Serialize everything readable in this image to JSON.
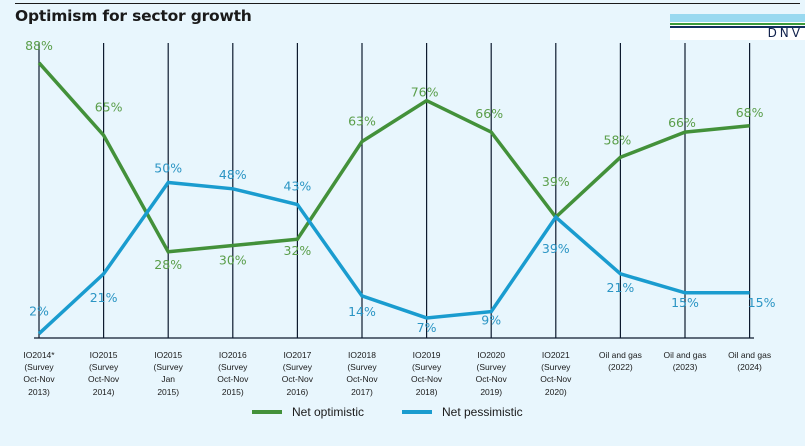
{
  "header": {
    "title": "Optimism for sector growth",
    "logo_text": "DNV"
  },
  "chart_data": {
    "type": "line",
    "title": "Optimism for sector growth",
    "xlabel": "",
    "ylabel": "",
    "ylim": [
      0,
      100
    ],
    "grid": "vertical",
    "legend_position": "bottom",
    "categories": [
      [
        "IO2014*",
        "(Survey",
        "Oct-Nov",
        "2013)"
      ],
      [
        "IO2015",
        "(Survey",
        "Oct-Nov",
        "2014)"
      ],
      [
        "IO2015",
        "(Survey",
        "Jan",
        "2015)"
      ],
      [
        "IO2016",
        "(Survey",
        "Oct-Nov",
        "2015)"
      ],
      [
        "IO2017",
        "(Survey",
        "Oct-Nov",
        "2016)"
      ],
      [
        "IO2018",
        "(Survey",
        "Oct-Nov",
        "2017)"
      ],
      [
        "IO2019",
        "(Survey",
        "Oct-Nov",
        "2018)"
      ],
      [
        "IO2020",
        "(Survey",
        "Oct-Nov",
        "2019)"
      ],
      [
        "IO2021",
        "(Survey",
        "Oct-Nov",
        "2020)"
      ],
      [
        "Oil and gas",
        "(2022)"
      ],
      [
        "Oil and gas",
        "(2023)"
      ],
      [
        "Oil and gas",
        "(2024)"
      ]
    ],
    "series": [
      {
        "name": "Net optimistic",
        "color": "#43913a",
        "label_color": "#5a9e4a",
        "values": [
          88,
          65,
          28,
          30,
          32,
          63,
          76,
          66,
          39,
          58,
          66,
          68
        ],
        "labels": [
          "88%",
          "65%",
          "28%",
          "30%",
          "32%",
          "63%",
          "76%",
          "66%",
          "39%",
          "58%",
          "66%",
          "68%"
        ]
      },
      {
        "name": "Net pessimistic",
        "color": "#1a9ccf",
        "label_color": "#2b95c4",
        "values": [
          2,
          21,
          50,
          48,
          43,
          14,
          7,
          9,
          39,
          21,
          15,
          15
        ],
        "labels": [
          "2%",
          "21%",
          "50%",
          "48%",
          "43%",
          "14%",
          "7%",
          "9%",
          "39%",
          "21%",
          "15%",
          "15%"
        ]
      }
    ]
  }
}
